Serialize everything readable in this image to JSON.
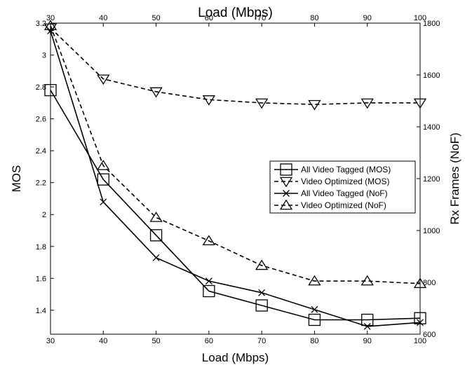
{
  "chart_data": {
    "type": "line",
    "title": "",
    "xlabel": "Load (Mbps)",
    "xlabel_top": "Load (Mbps)",
    "ylabel": "MOS",
    "ylabel_right": "Rx Frames (NoF)",
    "x": [
      30,
      40,
      50,
      60,
      70,
      80,
      90,
      100
    ],
    "xlim": [
      30,
      100
    ],
    "ylim": [
      1.25,
      3.2
    ],
    "ylim_right": [
      600,
      1800
    ],
    "x_ticks": [
      "30",
      "40",
      "50",
      "60",
      "70",
      "80",
      "90",
      "100"
    ],
    "y_ticks": [
      "1.4",
      "1.6",
      "1.8",
      "2",
      "2.2",
      "2.4",
      "2.6",
      "2.8",
      "3",
      "3.2"
    ],
    "y_ticks_right": [
      "600",
      "800",
      "1000",
      "1200",
      "1400",
      "1600",
      "1800"
    ],
    "grid": false,
    "legend_position": "center-right",
    "series": [
      {
        "name": "All Video Tagged (MOS)",
        "axis": "left",
        "marker": "square",
        "dash": "solid",
        "values": [
          2.78,
          2.22,
          1.87,
          1.52,
          1.43,
          1.34,
          1.34,
          1.35
        ]
      },
      {
        "name": " Video Optimized (MOS)",
        "axis": "left",
        "marker": "triangle-down",
        "dash": "dashed",
        "values": [
          3.17,
          2.85,
          2.77,
          2.72,
          2.7,
          2.69,
          2.7,
          2.7
        ]
      },
      {
        "name": "All Video Tagged (NoF)",
        "axis": "right",
        "marker": "x",
        "dash": "solid",
        "values": [
          1770,
          1110,
          895,
          805,
          760,
          695,
          630,
          645
        ]
      },
      {
        "name": "Video Optimized (NoF)",
        "axis": "right",
        "marker": "triangle-up",
        "dash": "dashed",
        "values": [
          1790,
          1250,
          1050,
          960,
          865,
          805,
          805,
          795
        ]
      }
    ]
  }
}
